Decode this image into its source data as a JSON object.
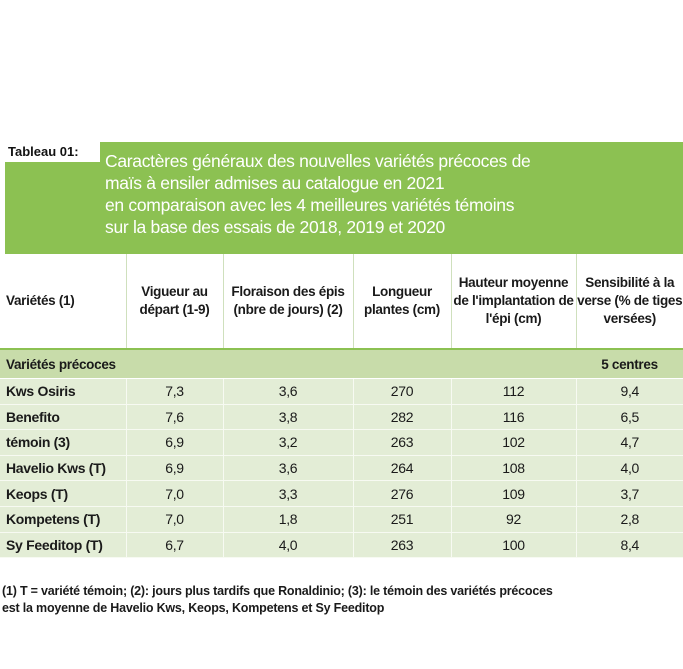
{
  "caption": {
    "label": "Tableau 01:",
    "lines": [
      "Caractères généraux des nouvelles variétés précoces de",
      "maïs à ensiler admises au catalogue en 2021",
      "en comparaison avec les 4 meilleures variétés témoins",
      "sur la base des essais de 2018, 2019 et 2020"
    ]
  },
  "table": {
    "headers": [
      "Variétés (1)",
      "Vigueur au départ (1-9)",
      "Floraison des épis (nbre de jours) (2)",
      "Longueur plantes (cm)",
      "Hauteur moyenne de l'implantation de l'épi (cm)",
      "Sensibilité à la verse (% de tiges versées)"
    ],
    "group": {
      "label": "Variétés précoces",
      "note": "5 centres"
    },
    "rows": [
      [
        "Kws Osiris",
        "7,3",
        "3,6",
        "270",
        "112",
        "9,4"
      ],
      [
        "Benefito",
        "7,6",
        "3,8",
        "282",
        "116",
        "6,5"
      ],
      [
        "témoin (3)",
        "6,9",
        "3,2",
        "263",
        "102",
        "4,7"
      ],
      [
        "Havelio Kws (T)",
        "6,9",
        "3,6",
        "264",
        "108",
        "4,0"
      ],
      [
        "Keops (T)",
        "7,0",
        "3,3",
        "276",
        "109",
        "3,7"
      ],
      [
        "Kompetens (T)",
        "7,0",
        "1,8",
        "251",
        "92",
        "2,8"
      ],
      [
        "Sy Feeditop (T)",
        "6,7",
        "4,0",
        "263",
        "100",
        "8,4"
      ]
    ]
  },
  "footnote": {
    "line1": "(1) T = variété témoin; (2): jours plus tardifs que Ronaldinio; (3): le témoin des variétés précoces",
    "line2": "est la moyenne de Havelio Kws, Keops, Kompetens et Sy Feeditop"
  }
}
